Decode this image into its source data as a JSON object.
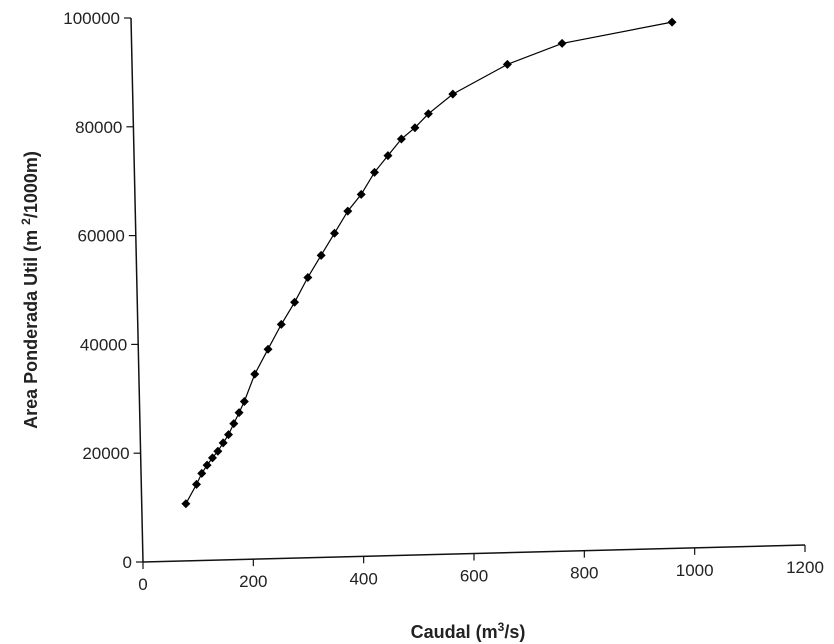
{
  "chart_data": {
    "type": "line",
    "title": "",
    "xlabel": {
      "pre": "Caudal (m",
      "sup": "3",
      "post": "/s)"
    },
    "ylabel": {
      "pre": "Area Ponderada Util (m ",
      "sup": "2",
      "post": "/1000m)"
    },
    "xlim": [
      0,
      1200
    ],
    "ylim": [
      0,
      100000
    ],
    "x_ticks": [
      "0",
      "200",
      "400",
      "600",
      "800",
      "1000",
      "1200"
    ],
    "y_ticks": [
      "0",
      "20000",
      "40000",
      "60000",
      "80000",
      "100000"
    ],
    "grid": false,
    "legend": "none",
    "marker": "diamond",
    "colors": {
      "line": "#000000",
      "marker": "#000000",
      "axis": "#111111"
    },
    "series": [
      {
        "x": [
          80,
          100,
          110,
          120,
          130,
          140,
          150,
          160,
          170,
          180,
          190,
          210,
          235,
          260,
          285,
          310,
          335,
          360,
          385,
          410,
          435,
          460,
          485,
          510,
          535,
          580,
          680,
          780,
          980
        ],
        "y": [
          10500,
          14000,
          16000,
          17500,
          18800,
          20000,
          21500,
          23000,
          25000,
          27000,
          29000,
          34000,
          38500,
          43000,
          47000,
          51500,
          55500,
          59500,
          63500,
          66500,
          70500,
          73500,
          76500,
          78500,
          81000,
          84500,
          89700,
          93300,
          96700
        ]
      }
    ]
  }
}
